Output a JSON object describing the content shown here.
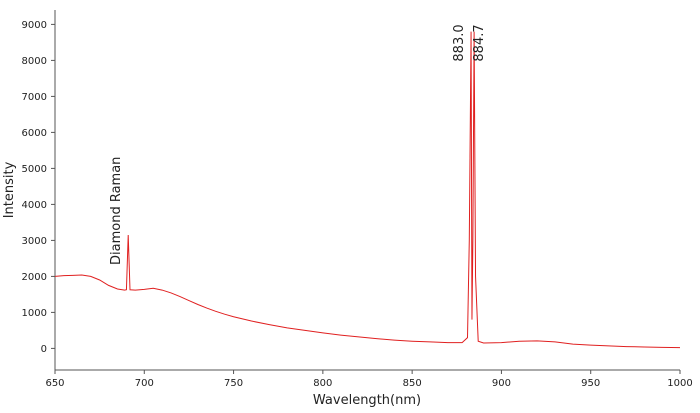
{
  "chart_data": {
    "type": "line",
    "xlabel": "Wavelength(nm)",
    "ylabel": "Intensity",
    "x": [
      650,
      655,
      660,
      665,
      670,
      675,
      680,
      685,
      689,
      690,
      691,
      692,
      695,
      700,
      705,
      710,
      715,
      720,
      725,
      730,
      735,
      740,
      745,
      750,
      760,
      770,
      780,
      790,
      800,
      810,
      820,
      830,
      840,
      850,
      860,
      870,
      878,
      881,
      882,
      883,
      883.5,
      884,
      884.7,
      885.5,
      887,
      890,
      900,
      910,
      920,
      930,
      940,
      950,
      960,
      970,
      980,
      990,
      1000
    ],
    "series": [
      {
        "color": "#e02020",
        "values": [
          2000,
          2020,
          2030,
          2040,
          2000,
          1900,
          1750,
          1650,
          1620,
          1630,
          3150,
          1630,
          1620,
          1640,
          1670,
          1620,
          1540,
          1440,
          1330,
          1220,
          1120,
          1030,
          950,
          880,
          760,
          660,
          570,
          500,
          430,
          370,
          320,
          270,
          230,
          200,
          180,
          160,
          160,
          300,
          3000,
          8800,
          800,
          3000,
          8800,
          2000,
          200,
          150,
          160,
          200,
          210,
          180,
          120,
          90,
          70,
          50,
          40,
          30,
          20
        ]
      }
    ],
    "xlim": [
      650,
      1000
    ],
    "xticks": [
      650,
      700,
      750,
      800,
      850,
      900,
      950,
      1000
    ],
    "ylim": [
      -600,
      9400
    ],
    "yticks": [
      0,
      1000,
      2000,
      3000,
      4000,
      5000,
      6000,
      7000,
      8000,
      9000
    ],
    "grid": false,
    "annotations": [
      {
        "text": "Diamond Raman",
        "x": 691
      },
      {
        "text": "883.0",
        "x": 883
      },
      {
        "text": "884.7",
        "x": 884.7
      }
    ]
  }
}
